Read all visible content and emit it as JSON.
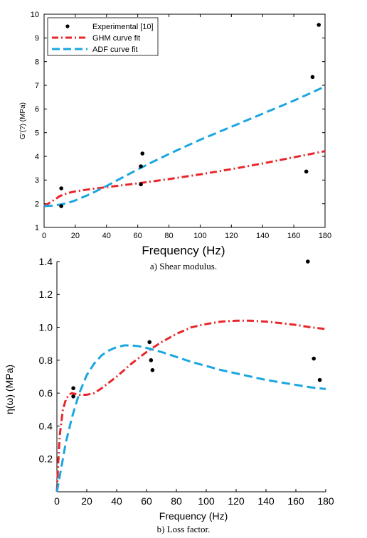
{
  "chart_data": [
    {
      "type": "line",
      "caption": "a) Shear modulus.",
      "xlabel": "Frequency (Hz)",
      "ylabel": "G'(?)  (MPa)",
      "xlim": [
        0,
        180
      ],
      "ylim": [
        1,
        10
      ],
      "xticks": [
        0,
        20,
        40,
        60,
        80,
        100,
        120,
        140,
        160,
        180
      ],
      "yticks": [
        1,
        2,
        3,
        4,
        5,
        6,
        7,
        8,
        9,
        10
      ],
      "grid": false,
      "legend_position": "top-left",
      "series": [
        {
          "name": "Experimental [10]",
          "style": "markers",
          "color": "#000000",
          "x": [
            11,
            11,
            62,
            62,
            63,
            168,
            172,
            176
          ],
          "y": [
            2.65,
            1.9,
            2.82,
            3.58,
            4.12,
            3.36,
            7.35,
            9.55
          ]
        },
        {
          "name": "GHM curve fit",
          "style": "dash-dot",
          "color": "#e8262a",
          "x": [
            0,
            5,
            10,
            15,
            20,
            30,
            40,
            50,
            60,
            70,
            80,
            100,
            120,
            140,
            160,
            180
          ],
          "y": [
            1.9,
            2.1,
            2.32,
            2.45,
            2.52,
            2.62,
            2.7,
            2.78,
            2.86,
            2.95,
            3.04,
            3.24,
            3.46,
            3.7,
            3.96,
            4.22
          ]
        },
        {
          "name": "ADF curve fit",
          "style": "dashed",
          "color": "#1aa6e0",
          "x": [
            0,
            5,
            10,
            15,
            20,
            30,
            40,
            50,
            60,
            70,
            80,
            100,
            120,
            140,
            160,
            180
          ],
          "y": [
            1.9,
            1.92,
            1.96,
            2.03,
            2.14,
            2.42,
            2.75,
            3.1,
            3.45,
            3.78,
            4.1,
            4.7,
            5.25,
            5.8,
            6.35,
            6.95
          ]
        }
      ]
    },
    {
      "type": "line",
      "caption": "b) Loss factor.",
      "xlabel": "Frequency (Hz)",
      "ylabel": "η(ω)  (MPa)",
      "xlim": [
        0,
        180
      ],
      "ylim": [
        0,
        1.4
      ],
      "xticks": [
        0,
        20,
        40,
        60,
        80,
        100,
        120,
        140,
        160,
        180
      ],
      "yticks": [
        0.2,
        0.4,
        0.6,
        0.8,
        1.0,
        1.2,
        1.4
      ],
      "ytick_labels": [
        "0.2",
        "0.4",
        "0.6",
        "0.8",
        "1.0",
        "1.2",
        "1.4"
      ],
      "grid": false,
      "series": [
        {
          "name": "Experimental [10]",
          "style": "markers",
          "color": "#000000",
          "x": [
            11,
            11,
            62,
            63,
            64,
            168,
            172,
            176
          ],
          "y": [
            0.63,
            0.58,
            0.91,
            0.8,
            0.74,
            1.4,
            0.81,
            0.68
          ]
        },
        {
          "name": "GHM curve fit",
          "style": "dash-dot",
          "color": "#e8262a",
          "x": [
            0,
            1,
            2,
            4,
            6,
            8,
            10,
            15,
            20,
            25,
            30,
            40,
            50,
            60,
            70,
            80,
            90,
            100,
            110,
            120,
            130,
            140,
            150,
            160,
            170,
            180
          ],
          "y": [
            0.0,
            0.2,
            0.35,
            0.5,
            0.56,
            0.59,
            0.6,
            0.59,
            0.59,
            0.6,
            0.63,
            0.7,
            0.78,
            0.85,
            0.91,
            0.96,
            1.0,
            1.02,
            1.035,
            1.04,
            1.04,
            1.035,
            1.025,
            1.015,
            1.0,
            0.99
          ]
        },
        {
          "name": "ADF curve fit",
          "style": "dashed",
          "color": "#1aa6e0",
          "x": [
            0,
            3,
            6,
            10,
            15,
            20,
            25,
            30,
            35,
            40,
            45,
            50,
            55,
            60,
            70,
            80,
            90,
            100,
            110,
            120,
            130,
            140,
            150,
            160,
            170,
            180
          ],
          "y": [
            0.0,
            0.15,
            0.3,
            0.45,
            0.6,
            0.71,
            0.78,
            0.83,
            0.86,
            0.88,
            0.89,
            0.89,
            0.885,
            0.875,
            0.85,
            0.82,
            0.79,
            0.765,
            0.74,
            0.72,
            0.7,
            0.68,
            0.665,
            0.65,
            0.635,
            0.625
          ]
        }
      ]
    }
  ]
}
